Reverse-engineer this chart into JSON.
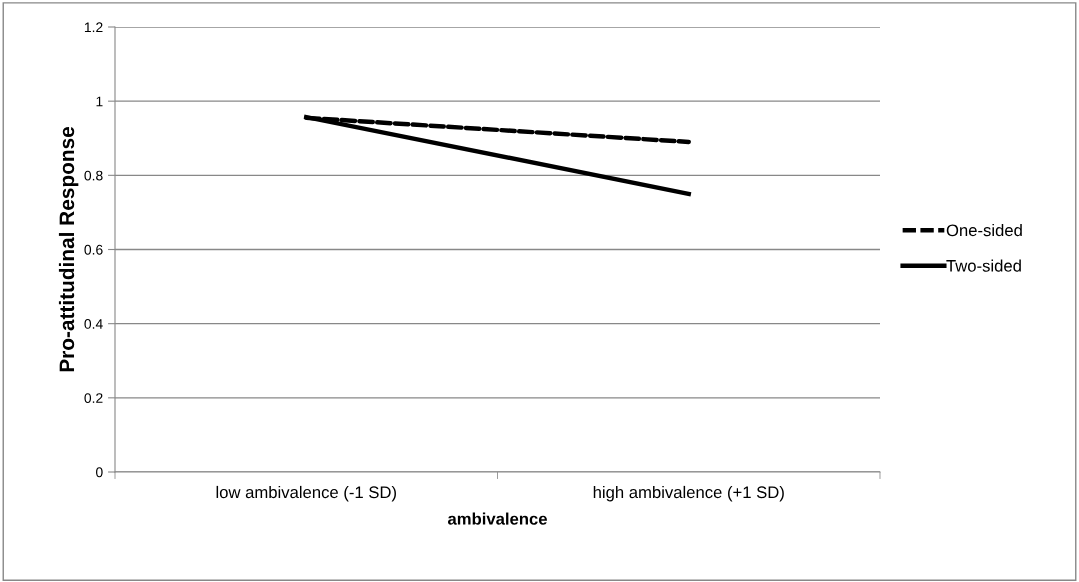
{
  "chart_data": {
    "type": "line",
    "xlabel": "ambivalence",
    "ylabel": "Pro-attitudinal Response",
    "categories": [
      "low ambivalence (-1 SD)",
      "high ambivalence (+1 SD)"
    ],
    "series": [
      {
        "name": "One-sided",
        "color": "#000000",
        "values": [
          0.955,
          0.89
        ],
        "line_style": "dashed"
      },
      {
        "name": "Two-sided",
        "color": "#000000",
        "values": [
          0.957,
          0.75
        ],
        "line_style": "solid"
      }
    ],
    "ylim": [
      0,
      1.2
    ],
    "yticks": [
      0,
      0.2,
      0.4,
      0.6,
      0.8,
      1,
      1.2
    ],
    "grid": "y",
    "legend": "right",
    "marker": "none"
  }
}
